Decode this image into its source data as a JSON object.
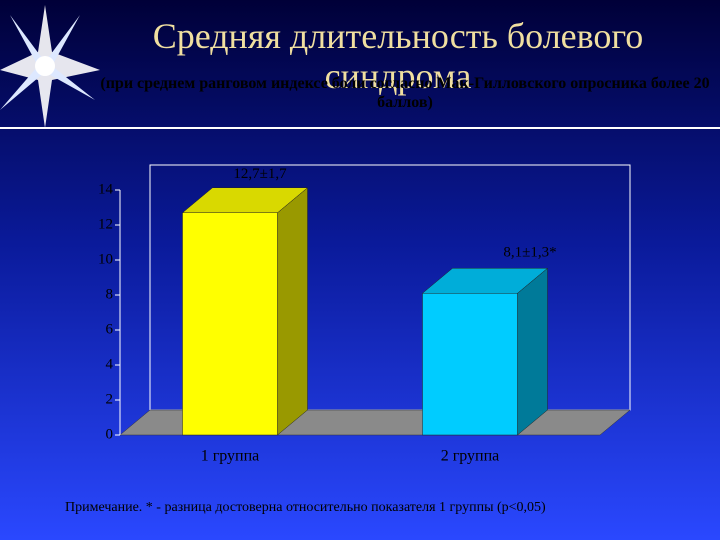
{
  "chart_data": {
    "type": "bar3d",
    "title": "Средняя длительность болевого синдрома",
    "subtitle": "(при среднем ранговом индексе боли согласно Мак-Гилловского опросника более 20 баллов)",
    "categories": [
      "1 группа",
      "2 группа"
    ],
    "values": [
      12.7,
      8.1
    ],
    "value_labels": [
      "12,7±1,7",
      "8,1±1,3*"
    ],
    "colors": [
      "#ffff00",
      "#00ccff"
    ],
    "ylim": [
      0,
      14
    ],
    "yticks": [
      0,
      2,
      4,
      6,
      8,
      10,
      12,
      14
    ],
    "note": "Примечание. * - разница достоверна относительно показателя 1 группы (р<0,05)"
  }
}
